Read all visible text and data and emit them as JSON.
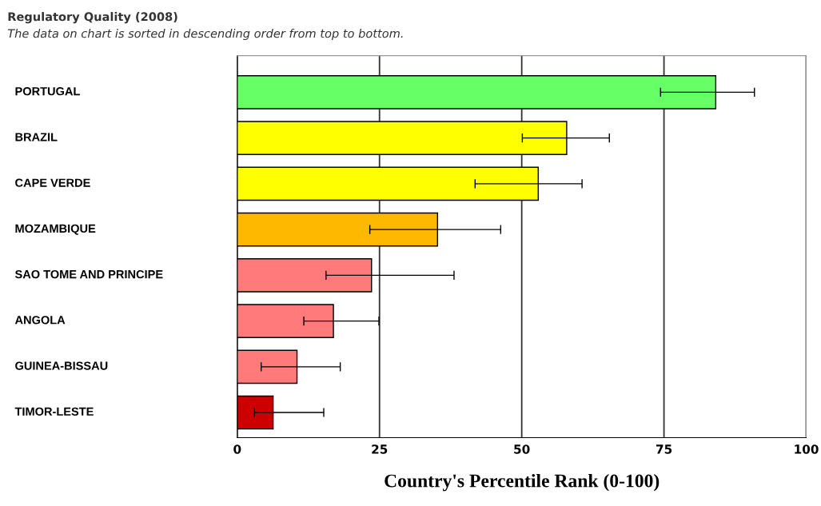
{
  "chart_data": {
    "type": "bar",
    "orientation": "horizontal",
    "title": "Regulatory Quality (2008)",
    "subtitle": "The data on chart is sorted in descending order from top to bottom.",
    "xlabel": "Country's Percentile Rank (0-100)",
    "categories": [
      "PORTUGAL",
      "BRAZIL",
      "CAPE VERDE",
      "MOZAMBIQUE",
      "SAO TOME AND PRINCIPE",
      "ANGOLA",
      "GUINEA-BISSAU",
      "TIMOR-LESTE"
    ],
    "values": [
      84.1,
      57.9,
      52.9,
      35.2,
      23.6,
      16.9,
      10.5,
      6.3
    ],
    "colors": [
      "#66ff66",
      "#ffff00",
      "#ffff00",
      "#ffb800",
      "#ff7b7b",
      "#ff7b7b",
      "#ff7b7b",
      "#cc0000"
    ],
    "errors": [
      [
        74.4,
        90.9
      ],
      [
        50.1,
        65.4
      ],
      [
        41.8,
        60.6
      ],
      [
        23.3,
        46.3
      ],
      [
        15.6,
        38.1
      ],
      [
        11.7,
        24.9
      ],
      [
        4.2,
        18.1
      ],
      [
        3.0,
        15.2
      ]
    ],
    "xlim": [
      0,
      100
    ],
    "xticks": [
      0,
      25,
      50,
      75,
      100
    ],
    "grid": "x"
  }
}
